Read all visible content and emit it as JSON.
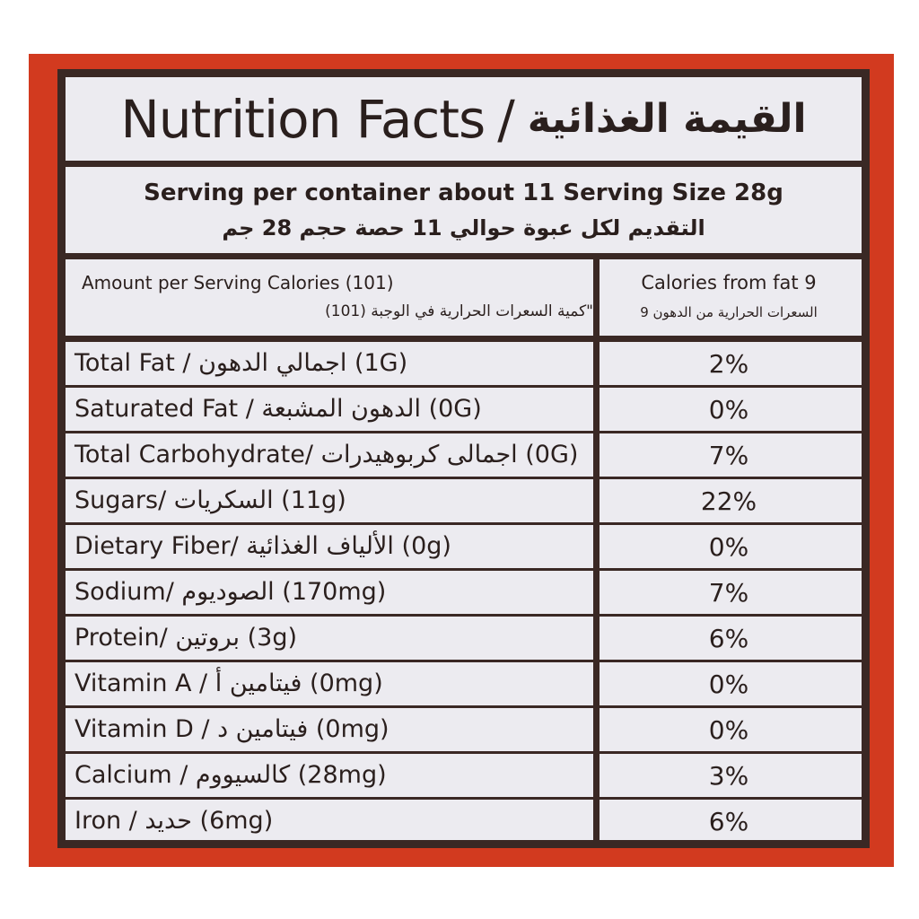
{
  "title": {
    "en": "Nutrition Facts",
    "sep": "/",
    "ar": "القيمة الغذائية"
  },
  "serving": {
    "en": "Serving per container about 11 Serving Size 28g",
    "ar": "التقديم لكل عبوة حوالي 11 حصة حجم 28 جم"
  },
  "calories": {
    "en": "Amount per Serving Calories (101)",
    "ar": "\"كمية السعرات الحرارية في الوجبة (101)",
    "fat_en": "Calories from fat 9",
    "fat_ar": "السعرات الحرارية من الدهون 9"
  },
  "rows": [
    {
      "label": "Total Fat / اجمالي الدهون (1G)",
      "dv": "2%"
    },
    {
      "label": "Saturated Fat / الدهون المشبعة (0G)",
      "dv": "0%"
    },
    {
      "label": "Total Carbohydrate/ اجمالى كربوهيدرات (0G)",
      "dv": "7%"
    },
    {
      "label": "Sugars/ السكريات (11g)",
      "dv": "22%"
    },
    {
      "label": "Dietary Fiber/ الألياف الغذائية (0g)",
      "dv": "0%"
    },
    {
      "label": "Sodium/ الصوديوم (170mg)",
      "dv": "7%"
    },
    {
      "label": "Protein/ بروتين (3g)",
      "dv": "6%"
    },
    {
      "label": "Vitamin A / فيتامين أ (0mg)",
      "dv": "0%"
    },
    {
      "label": "Vitamin D / فيتامين د (0mg)",
      "dv": "0%"
    },
    {
      "label": "Calcium / كالسيووم (28mg)",
      "dv": "3%"
    },
    {
      "label": "Iron / حديد (6mg)",
      "dv": "6%"
    }
  ],
  "colors": {
    "package": "#d23a1f",
    "label_bg": "#ecebf0",
    "border": "#3a2824",
    "text": "#2a1f1d"
  }
}
